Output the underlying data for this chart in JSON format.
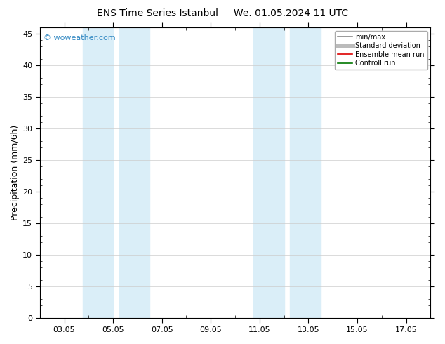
{
  "title": "ENS Time Series Istanbul     We. 01.05.2024 11 UTC",
  "ylabel": "Precipitation (mm/6h)",
  "ylim": [
    0,
    46
  ],
  "yticks": [
    0,
    5,
    10,
    15,
    20,
    25,
    30,
    35,
    40,
    45
  ],
  "x_min": 2.0,
  "x_max": 18.0,
  "xtick_labels": [
    "03.05",
    "05.05",
    "07.05",
    "09.05",
    "11.05",
    "13.05",
    "15.05",
    "17.05"
  ],
  "xtick_positions": [
    3,
    5,
    7,
    9,
    11,
    13,
    15,
    17
  ],
  "shaded_regions": [
    {
      "xstart": 3.75,
      "xend": 5.0,
      "color": "#daeef8"
    },
    {
      "xstart": 5.25,
      "xend": 6.5,
      "color": "#daeef8"
    },
    {
      "xstart": 10.75,
      "xend": 12.0,
      "color": "#daeef8"
    },
    {
      "xstart": 12.25,
      "xend": 13.5,
      "color": "#daeef8"
    }
  ],
  "watermark": "© woweather.com",
  "watermark_color": "#2e86c1",
  "legend_entries": [
    {
      "label": "min/max",
      "color": "#888888",
      "lw": 1.2,
      "style": "-"
    },
    {
      "label": "Standard deviation",
      "color": "#bbbbbb",
      "lw": 5,
      "style": "-"
    },
    {
      "label": "Ensemble mean run",
      "color": "#dd0000",
      "lw": 1.2,
      "style": "-"
    },
    {
      "label": "Controll run",
      "color": "#007700",
      "lw": 1.2,
      "style": "-"
    }
  ],
  "background_color": "#ffffff",
  "grid_color": "#cccccc",
  "title_fontsize": 10,
  "tick_fontsize": 8,
  "ylabel_fontsize": 9
}
